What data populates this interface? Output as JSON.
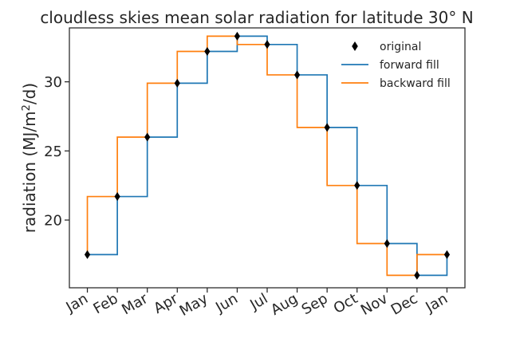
{
  "chart_data": {
    "type": "line",
    "title": "cloudless skies mean solar radiation for latitude 30° N",
    "xlabel": "",
    "ylabel": "radiation (MJ/m²/d)",
    "ylabel_parts": {
      "main": "radiation (MJ/m",
      "sup": "2",
      "tail": "/d)"
    },
    "categories": [
      "Jan",
      "Feb",
      "Mar",
      "Apr",
      "May",
      "Jun",
      "Jul",
      "Aug",
      "Sep",
      "Oct",
      "Nov",
      "Dec",
      "Jan"
    ],
    "y_ticks": [
      20,
      25,
      30
    ],
    "ylim": [
      15.1,
      33.9
    ],
    "xlim": [
      -0.6,
      12.6
    ],
    "grid": false,
    "legend_position": "top-right",
    "series": [
      {
        "name": "original",
        "kind": "markers",
        "marker": "diamond",
        "color": "#000000",
        "values": [
          17.5,
          21.7,
          26.0,
          29.9,
          32.2,
          33.3,
          32.7,
          30.5,
          26.7,
          22.5,
          18.3,
          16.0,
          17.5
        ]
      },
      {
        "name": "forward fill",
        "kind": "step-post",
        "color": "#1f77b4",
        "values": [
          17.5,
          21.7,
          26.0,
          29.9,
          32.2,
          33.3,
          32.7,
          30.5,
          26.7,
          22.5,
          18.3,
          16.0,
          17.5
        ]
      },
      {
        "name": "backward fill",
        "kind": "step-pre",
        "color": "#ff7f0e",
        "values": [
          17.5,
          21.7,
          26.0,
          29.9,
          32.2,
          33.3,
          32.7,
          30.5,
          26.7,
          22.5,
          18.3,
          16.0,
          17.5
        ]
      }
    ]
  }
}
